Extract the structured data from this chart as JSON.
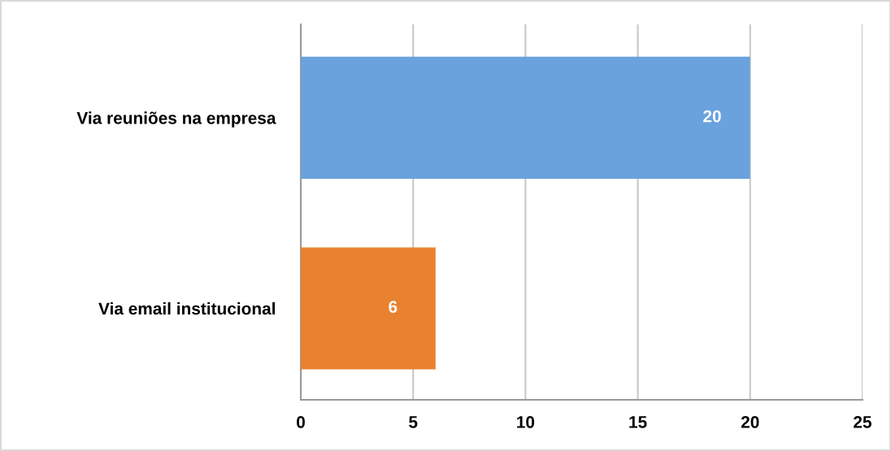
{
  "chart_data": {
    "type": "bar",
    "orientation": "horizontal",
    "categories": [
      "Via reuniões na empresa",
      "Via email institucional"
    ],
    "values": [
      20,
      6
    ],
    "colors": [
      "#6aa2dd",
      "#e9822f"
    ],
    "xlim": [
      0,
      25
    ],
    "xticks": [
      0,
      5,
      10,
      15,
      20,
      25
    ],
    "grid": "x",
    "data_labels": true,
    "legend": false
  }
}
